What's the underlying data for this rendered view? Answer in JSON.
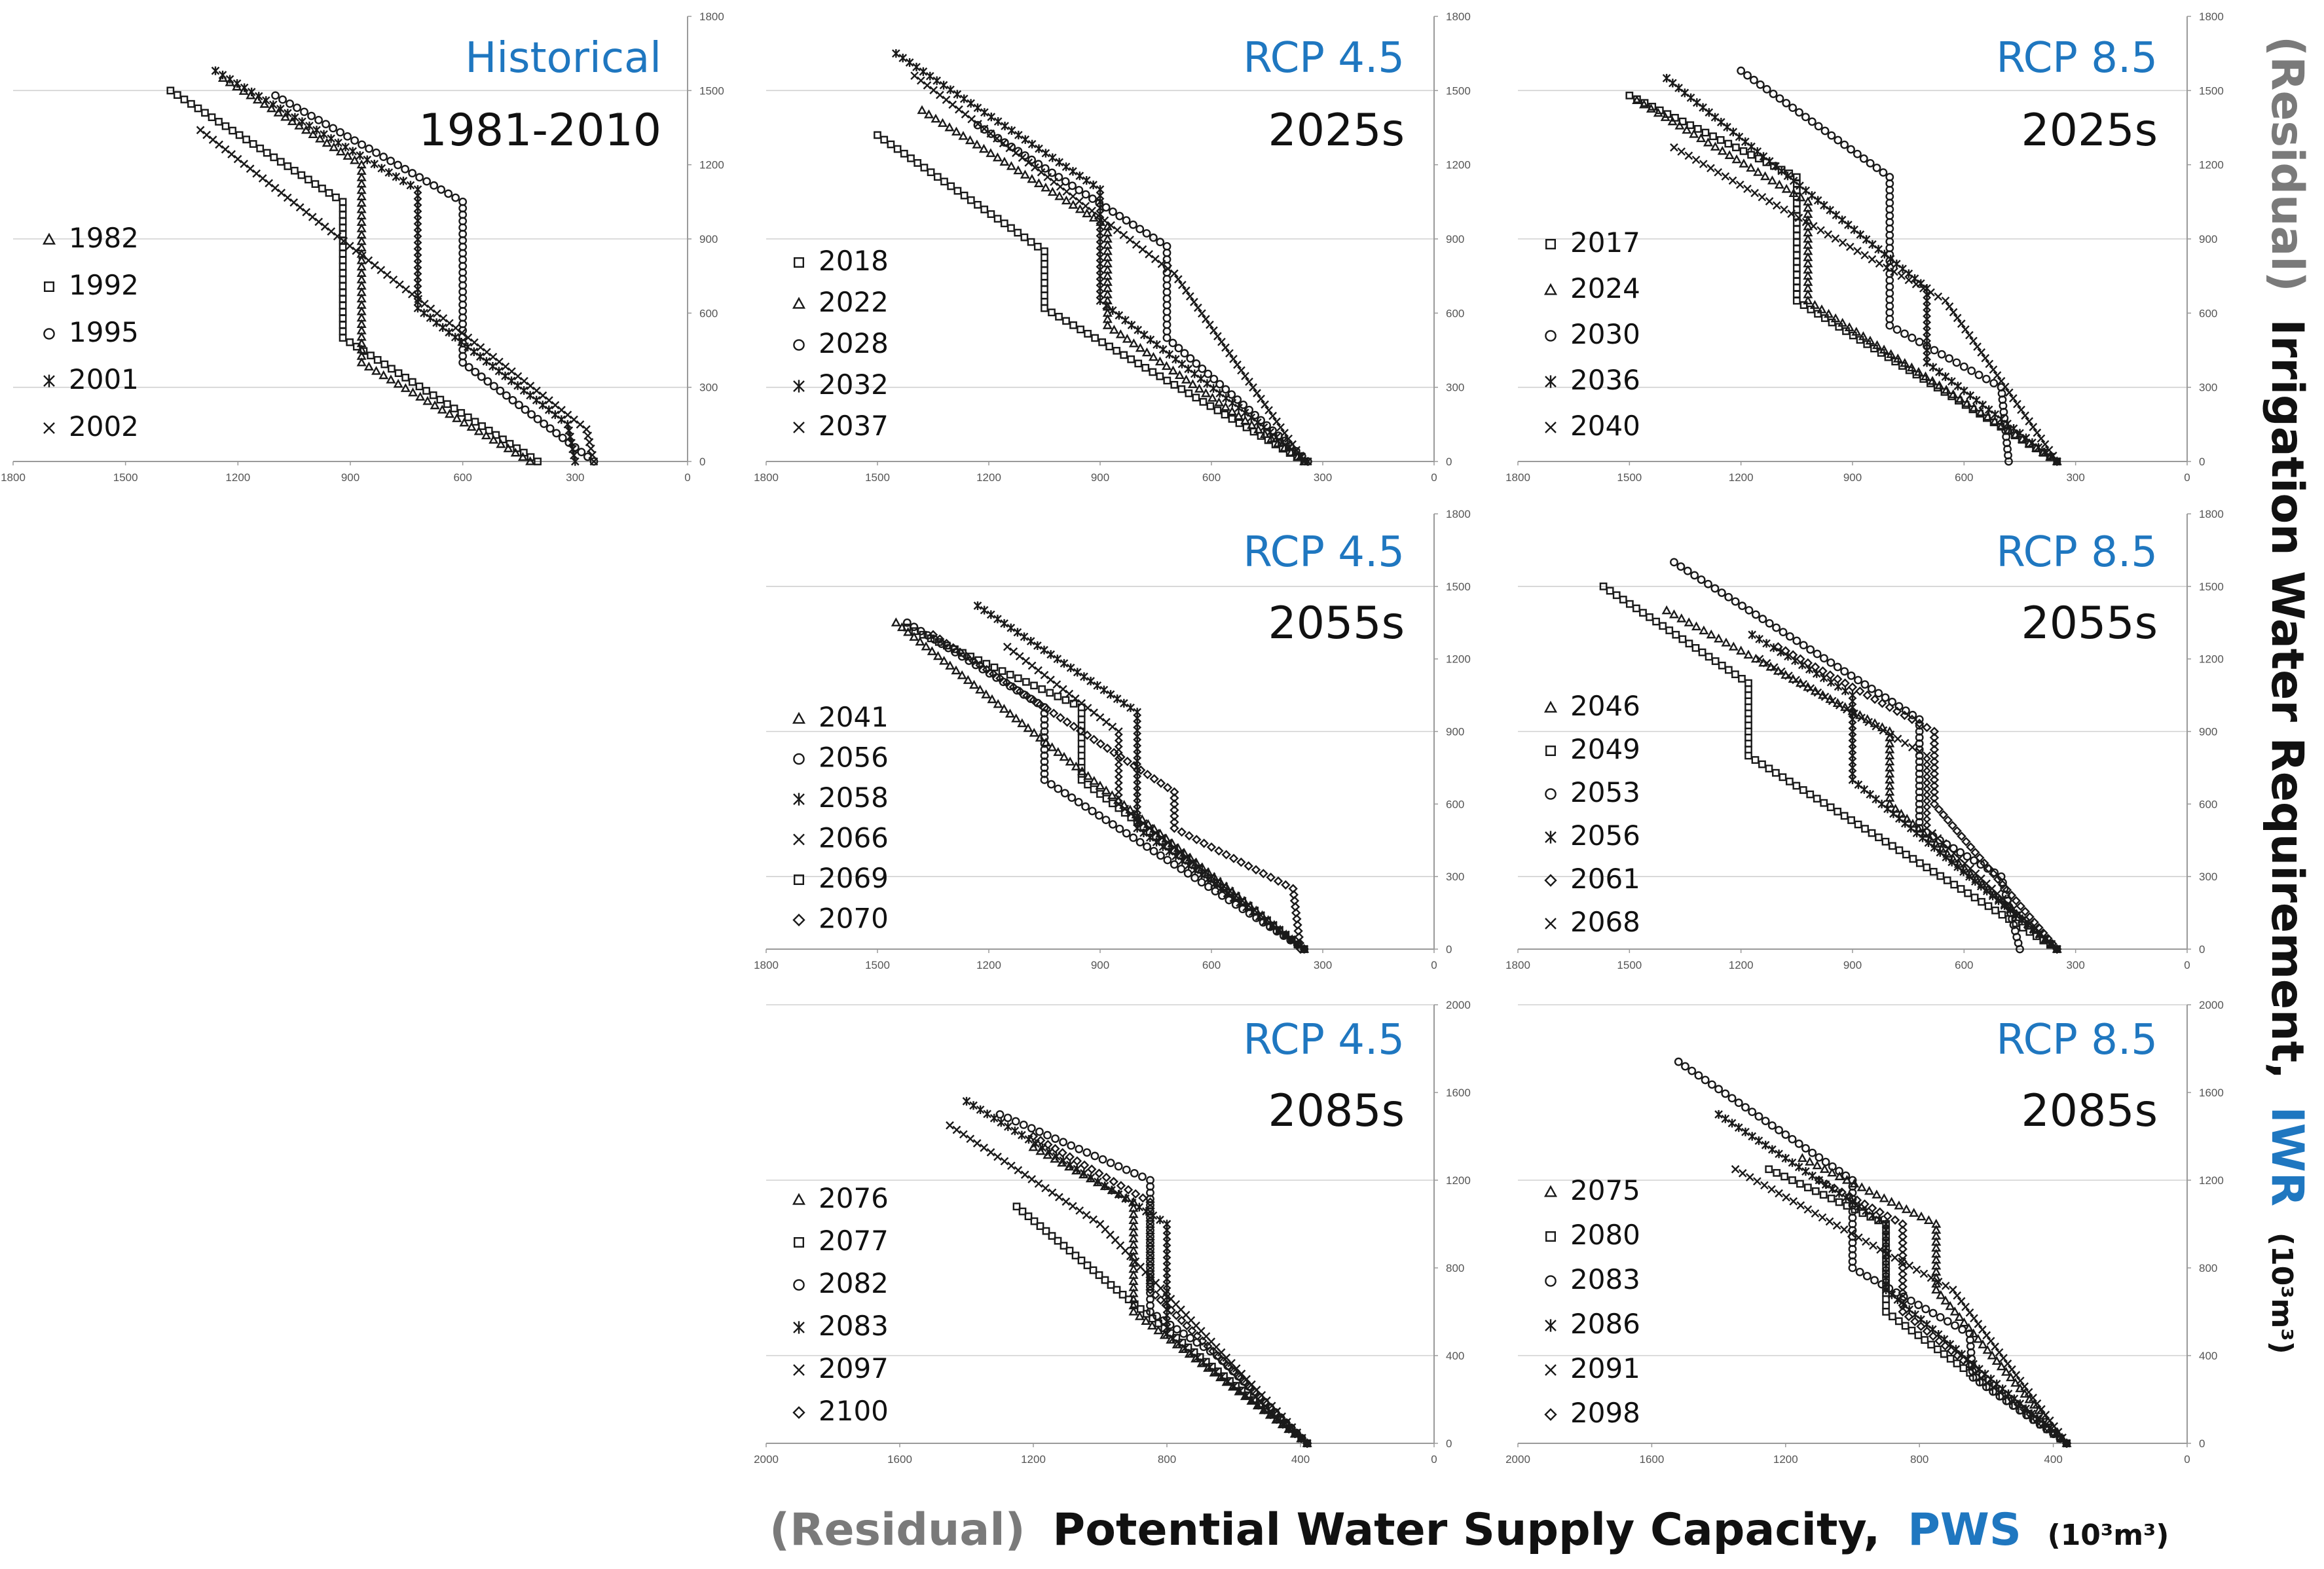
{
  "figure": {
    "x_axis_title": {
      "residual": "(Residual)",
      "main": "Potential Water Supply Capacity,",
      "abbr": "PWS",
      "unit": "(10³m³)"
    },
    "y_axis_title": {
      "residual": "(Residual)",
      "main": "Irrigation Water Requirement,",
      "abbr": "IWR",
      "unit": "(10³m³)"
    },
    "colors": {
      "scenario": "#1f77c0",
      "text": "#111111",
      "grid": "#d0d0d0",
      "axis": "#9a9a9a",
      "marker": "#1a1a1a"
    }
  },
  "chart_data": [
    {
      "id": "hist",
      "type": "scatter",
      "scenario": "Historical",
      "period": "1981-2010",
      "x_ticks": [
        "1800",
        "1500",
        "1200",
        "900",
        "600",
        "300",
        "0"
      ],
      "y_ticks": [
        "0",
        "300",
        "600",
        "900",
        "1200",
        "1500",
        "1800"
      ],
      "xlim": [
        1800,
        0
      ],
      "ylim": [
        0,
        1800
      ],
      "series": [
        {
          "name": "1982",
          "marker": "triangle",
          "path": [
            [
              1240,
              1550
            ],
            [
              870,
              1200
            ],
            [
              870,
              400
            ],
            [
              420,
              0
            ]
          ]
        },
        {
          "name": "1992",
          "marker": "square",
          "path": [
            [
              1380,
              1500
            ],
            [
              920,
              1050
            ],
            [
              920,
              500
            ],
            [
              400,
              0
            ]
          ]
        },
        {
          "name": "1995",
          "marker": "circle",
          "path": [
            [
              1100,
              1480
            ],
            [
              600,
              1050
            ],
            [
              600,
              400
            ],
            [
              250,
              0
            ]
          ]
        },
        {
          "name": "2001",
          "marker": "star",
          "path": [
            [
              1260,
              1580
            ],
            [
              720,
              1100
            ],
            [
              720,
              620
            ],
            [
              320,
              150
            ],
            [
              300,
              0
            ]
          ]
        },
        {
          "name": "2002",
          "marker": "x",
          "path": [
            [
              1300,
              1340
            ],
            [
              270,
              130
            ],
            [
              250,
              0
            ]
          ]
        }
      ]
    },
    {
      "id": "r45_2025",
      "type": "scatter",
      "scenario": "RCP 4.5",
      "period": "2025s",
      "x_ticks": [
        "1800",
        "1500",
        "1200",
        "900",
        "600",
        "300",
        "0"
      ],
      "y_ticks": [
        "0",
        "300",
        "600",
        "900",
        "1200",
        "1500",
        "1800"
      ],
      "xlim": [
        1800,
        0
      ],
      "ylim": [
        0,
        1800
      ],
      "series": [
        {
          "name": "2018",
          "marker": "square",
          "path": [
            [
              1500,
              1320
            ],
            [
              1050,
              850
            ],
            [
              1050,
              620
            ],
            [
              350,
              0
            ]
          ]
        },
        {
          "name": "2022",
          "marker": "triangle",
          "path": [
            [
              1380,
              1420
            ],
            [
              880,
              950
            ],
            [
              880,
              550
            ],
            [
              350,
              0
            ]
          ]
        },
        {
          "name": "2028",
          "marker": "circle",
          "path": [
            [
              1230,
              1360
            ],
            [
              720,
              870
            ],
            [
              720,
              500
            ],
            [
              340,
              0
            ]
          ]
        },
        {
          "name": "2032",
          "marker": "star",
          "path": [
            [
              1450,
              1650
            ],
            [
              900,
              1100
            ],
            [
              900,
              650
            ],
            [
              340,
              0
            ]
          ]
        },
        {
          "name": "2037",
          "marker": "x",
          "path": [
            [
              1400,
              1560
            ],
            [
              700,
              760
            ],
            [
              350,
              0
            ]
          ]
        }
      ]
    },
    {
      "id": "r85_2025",
      "type": "scatter",
      "scenario": "RCP 8.5",
      "period": "2025s",
      "x_ticks": [
        "1800",
        "1500",
        "1200",
        "900",
        "600",
        "300",
        "0"
      ],
      "y_ticks": [
        "0",
        "300",
        "600",
        "900",
        "1200",
        "1500",
        "1800"
      ],
      "xlim": [
        1800,
        0
      ],
      "ylim": [
        0,
        1800
      ],
      "series": [
        {
          "name": "2017",
          "marker": "square",
          "path": [
            [
              1500,
              1480
            ],
            [
              1050,
              1150
            ],
            [
              1050,
              650
            ],
            [
              350,
              0
            ]
          ]
        },
        {
          "name": "2024",
          "marker": "triangle",
          "path": [
            [
              1480,
              1460
            ],
            [
              1020,
              1050
            ],
            [
              1020,
              650
            ],
            [
              350,
              0
            ]
          ]
        },
        {
          "name": "2030",
          "marker": "circle",
          "path": [
            [
              1200,
              1580
            ],
            [
              800,
              1150
            ],
            [
              800,
              550
            ],
            [
              500,
              300
            ],
            [
              480,
              0
            ]
          ]
        },
        {
          "name": "2036",
          "marker": "star",
          "path": [
            [
              1400,
              1550
            ],
            [
              700,
              700
            ],
            [
              700,
              400
            ],
            [
              350,
              0
            ]
          ]
        },
        {
          "name": "2040",
          "marker": "x",
          "path": [
            [
              1380,
              1270
            ],
            [
              650,
              650
            ],
            [
              350,
              0
            ]
          ]
        }
      ]
    },
    {
      "id": "r45_2055",
      "type": "scatter",
      "scenario": "RCP 4.5",
      "period": "2055s",
      "x_ticks": [
        "1800",
        "1500",
        "1200",
        "900",
        "600",
        "300",
        "0"
      ],
      "y_ticks": [
        "0",
        "300",
        "600",
        "900",
        "1200",
        "1500",
        "1800"
      ],
      "xlim": [
        1800,
        0
      ],
      "ylim": [
        0,
        1800
      ],
      "series": [
        {
          "name": "2041",
          "marker": "triangle",
          "path": [
            [
              1450,
              1350
            ],
            [
              350,
              0
            ]
          ]
        },
        {
          "name": "2056",
          "marker": "circle",
          "path": [
            [
              1420,
              1350
            ],
            [
              1050,
              1000
            ],
            [
              1050,
              700
            ],
            [
              350,
              0
            ]
          ]
        },
        {
          "name": "2058",
          "marker": "star",
          "path": [
            [
              1230,
              1420
            ],
            [
              800,
              980
            ],
            [
              800,
              500
            ],
            [
              350,
              0
            ]
          ]
        },
        {
          "name": "2066",
          "marker": "x",
          "path": [
            [
              1150,
              1250
            ],
            [
              850,
              900
            ],
            [
              850,
              600
            ],
            [
              350,
              0
            ]
          ]
        },
        {
          "name": "2069",
          "marker": "square",
          "path": [
            [
              1420,
              1330
            ],
            [
              950,
              1000
            ],
            [
              950,
              700
            ],
            [
              350,
              0
            ]
          ]
        },
        {
          "name": "2070",
          "marker": "diamond",
          "path": [
            [
              1350,
              1300
            ],
            [
              700,
              650
            ],
            [
              700,
              500
            ],
            [
              380,
              250
            ],
            [
              360,
              0
            ]
          ]
        }
      ]
    },
    {
      "id": "r85_2055",
      "type": "scatter",
      "scenario": "RCP 8.5",
      "period": "2055s",
      "x_ticks": [
        "1800",
        "1500",
        "1200",
        "900",
        "600",
        "300",
        "0"
      ],
      "y_ticks": [
        "0",
        "300",
        "600",
        "900",
        "1200",
        "1500",
        "1800"
      ],
      "xlim": [
        1800,
        0
      ],
      "ylim": [
        0,
        1800
      ],
      "series": [
        {
          "name": "2046",
          "marker": "triangle",
          "path": [
            [
              1400,
              1400
            ],
            [
              800,
              900
            ],
            [
              800,
              600
            ],
            [
              350,
              0
            ]
          ]
        },
        {
          "name": "2049",
          "marker": "square",
          "path": [
            [
              1570,
              1500
            ],
            [
              1180,
              1100
            ],
            [
              1180,
              800
            ],
            [
              350,
              0
            ]
          ]
        },
        {
          "name": "2053",
          "marker": "circle",
          "path": [
            [
              1380,
              1600
            ],
            [
              720,
              950
            ],
            [
              720,
              500
            ],
            [
              500,
              300
            ],
            [
              450,
              0
            ]
          ]
        },
        {
          "name": "2056",
          "marker": "star",
          "path": [
            [
              1170,
              1300
            ],
            [
              900,
              1050
            ],
            [
              900,
              700
            ],
            [
              350,
              0
            ]
          ]
        },
        {
          "name": "2061",
          "marker": "diamond",
          "path": [
            [
              1100,
              1250
            ],
            [
              680,
              900
            ],
            [
              680,
              600
            ],
            [
              350,
              0
            ]
          ]
        },
        {
          "name": "2068",
          "marker": "x",
          "path": [
            [
              1150,
              1200
            ],
            [
              700,
              800
            ],
            [
              700,
              500
            ],
            [
              350,
              0
            ]
          ]
        }
      ]
    },
    {
      "id": "r45_2085",
      "type": "scatter",
      "scenario": "RCP 4.5",
      "period": "2085s",
      "x_ticks": [
        "2000",
        "1600",
        "1200",
        "800",
        "400",
        "0"
      ],
      "y_ticks": [
        "0",
        "400",
        "800",
        "1200",
        "1600",
        "2000"
      ],
      "xlim": [
        2000,
        0
      ],
      "ylim": [
        0,
        2000
      ],
      "series": [
        {
          "name": "2076",
          "marker": "triangle",
          "path": [
            [
              1200,
              1350
            ],
            [
              900,
              1100
            ],
            [
              900,
              600
            ],
            [
              380,
              0
            ]
          ]
        },
        {
          "name": "2077",
          "marker": "square",
          "path": [
            [
              1250,
              1080
            ],
            [
              950,
              700
            ],
            [
              380,
              0
            ]
          ]
        },
        {
          "name": "2082",
          "marker": "circle",
          "path": [
            [
              1300,
              1500
            ],
            [
              850,
              1200
            ],
            [
              850,
              600
            ],
            [
              650,
              400
            ],
            [
              380,
              0
            ]
          ]
        },
        {
          "name": "2083",
          "marker": "star",
          "path": [
            [
              1400,
              1560
            ],
            [
              800,
              1000
            ],
            [
              800,
              500
            ],
            [
              380,
              0
            ]
          ]
        },
        {
          "name": "2097",
          "marker": "x",
          "path": [
            [
              1450,
              1450
            ],
            [
              1000,
              1000
            ],
            [
              380,
              0
            ]
          ]
        },
        {
          "name": "2100",
          "marker": "diamond",
          "path": [
            [
              1200,
              1400
            ],
            [
              850,
              1100
            ],
            [
              850,
              700
            ],
            [
              380,
              0
            ]
          ]
        }
      ]
    },
    {
      "id": "r85_2085",
      "type": "scatter",
      "scenario": "RCP 8.5",
      "period": "2085s",
      "x_ticks": [
        "2000",
        "1600",
        "1200",
        "800",
        "400",
        "0"
      ],
      "y_ticks": [
        "0",
        "400",
        "800",
        "1200",
        "1600",
        "2000"
      ],
      "xlim": [
        2000,
        0
      ],
      "ylim": [
        0,
        2000
      ],
      "series": [
        {
          "name": "2075",
          "marker": "triangle",
          "path": [
            [
              1150,
              1300
            ],
            [
              750,
              1000
            ],
            [
              750,
              700
            ],
            [
              360,
              0
            ]
          ]
        },
        {
          "name": "2080",
          "marker": "square",
          "path": [
            [
              1250,
              1250
            ],
            [
              900,
              1000
            ],
            [
              900,
              600
            ],
            [
              360,
              0
            ]
          ]
        },
        {
          "name": "2083",
          "marker": "circle",
          "path": [
            [
              1520,
              1740
            ],
            [
              1000,
              1200
            ],
            [
              1000,
              800
            ],
            [
              650,
              500
            ],
            [
              640,
              300
            ],
            [
              360,
              0
            ]
          ]
        },
        {
          "name": "2086",
          "marker": "star",
          "path": [
            [
              1400,
              1500
            ],
            [
              900,
              1000
            ],
            [
              900,
              700
            ],
            [
              360,
              0
            ]
          ]
        },
        {
          "name": "2091",
          "marker": "x",
          "path": [
            [
              1350,
              1250
            ],
            [
              700,
              700
            ],
            [
              360,
              0
            ]
          ]
        },
        {
          "name": "2098",
          "marker": "diamond",
          "path": [
            [
              1100,
              1200
            ],
            [
              850,
              1000
            ],
            [
              850,
              600
            ],
            [
              360,
              0
            ]
          ]
        }
      ]
    }
  ]
}
